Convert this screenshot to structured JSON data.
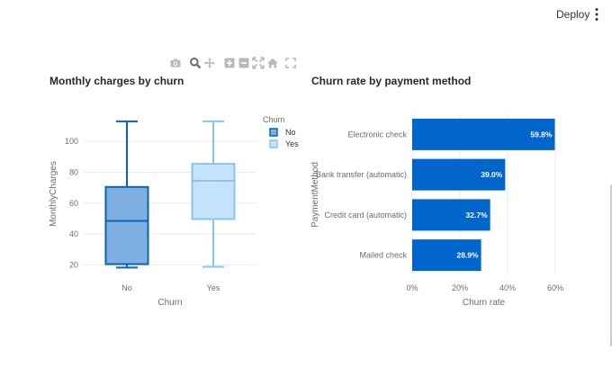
{
  "header": {
    "deploy_label": "Deploy",
    "menu_icon": "kebab-menu-icon"
  },
  "modebar": {
    "icons": [
      "camera-icon",
      "zoom-icon",
      "pan-icon",
      "zoom-in-icon",
      "zoom-out-icon",
      "autoscale-icon",
      "home-icon",
      "fullscreen-icon"
    ]
  },
  "colors": {
    "bar": "#0066cc",
    "box_no_line": "#0a63b8",
    "box_no_fill": "#7fafe0",
    "box_yes_line": "#8ac4ee",
    "box_yes_fill": "#c5e4fb",
    "grid": "#ebebeb"
  },
  "chart_data": [
    {
      "type": "box",
      "title": "Monthly charges by churn",
      "xlabel": "Churn",
      "ylabel": "MonthlyCharges",
      "ylim": [
        15,
        117
      ],
      "yticks": [
        20,
        40,
        60,
        80,
        100
      ],
      "grid": true,
      "legend": {
        "title": "Churn",
        "placement": "right",
        "entries": [
          "No",
          "Yes"
        ]
      },
      "categories": [
        "No",
        "Yes"
      ],
      "boxes": [
        {
          "name": "No",
          "min": 18.25,
          "q1": 20.5,
          "median": 48.5,
          "q3": 70.5,
          "max": 113
        },
        {
          "name": "Yes",
          "min": 18.8,
          "q1": 49.7,
          "median": 74.5,
          "q3": 85.5,
          "max": 113
        }
      ]
    },
    {
      "type": "bar",
      "orientation": "horizontal",
      "title": "Churn rate by payment method",
      "xlabel": "Churn rate",
      "ylabel": "PaymentMethod",
      "xlim": [
        0,
        60
      ],
      "xticks": [
        "0%",
        "20%",
        "40%",
        "60%"
      ],
      "grid": true,
      "categories": [
        "Electronic check",
        "Bank transfer (automatic)",
        "Credit card (automatic)",
        "Mailed check"
      ],
      "values": [
        59.8,
        39.0,
        32.7,
        28.9
      ],
      "labels": [
        "59.8%",
        "39.0%",
        "32.7%",
        "28.9%"
      ]
    }
  ]
}
